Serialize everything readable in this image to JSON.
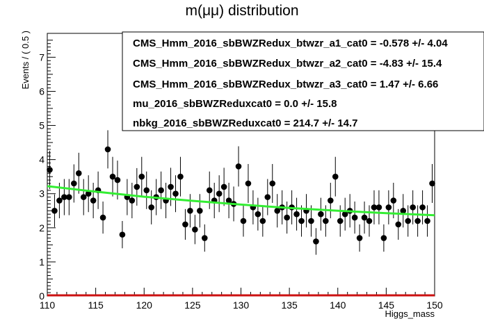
{
  "chart_data": {
    "type": "scatter",
    "title": "m(μμ) distribution",
    "xlabel": "Higgs_mass",
    "ylabel": "Events / ( 0.5 )",
    "xlim": [
      110,
      150
    ],
    "ylim": [
      0,
      7.7
    ],
    "x_ticks": [
      "110",
      "115",
      "120",
      "125",
      "130",
      "135",
      "140",
      "145",
      "150"
    ],
    "y_ticks": [
      "0",
      "1",
      "2",
      "3",
      "4",
      "5",
      "6",
      "7"
    ],
    "grid": false,
    "legend": "top-right",
    "series": [
      {
        "kind": "points_with_errors",
        "color": "#000000",
        "x": [
          110.25,
          110.75,
          111.25,
          111.75,
          112.25,
          112.75,
          113.25,
          113.75,
          114.25,
          114.75,
          115.25,
          115.75,
          116.25,
          116.75,
          117.25,
          117.75,
          118.25,
          118.75,
          119.25,
          119.75,
          120.25,
          120.75,
          121.25,
          121.75,
          122.25,
          122.75,
          123.25,
          123.75,
          124.25,
          124.75,
          125.25,
          125.75,
          126.25,
          126.75,
          127.25,
          127.75,
          128.25,
          128.75,
          129.25,
          129.75,
          130.25,
          130.75,
          131.25,
          131.75,
          132.25,
          132.75,
          133.25,
          133.75,
          134.25,
          134.75,
          135.25,
          135.75,
          136.25,
          136.75,
          137.25,
          137.75,
          138.25,
          138.75,
          139.25,
          139.75,
          140.25,
          140.75,
          141.25,
          141.75,
          142.25,
          142.75,
          143.25,
          143.75,
          144.25,
          144.75,
          145.25,
          145.75,
          146.25,
          146.75,
          147.25,
          147.75,
          148.25,
          148.75,
          149.25,
          149.75
        ],
        "y": [
          3.7,
          2.5,
          2.8,
          2.9,
          2.9,
          3.3,
          3.6,
          2.9,
          3.0,
          2.8,
          3.1,
          2.3,
          4.3,
          3.5,
          3.4,
          1.8,
          2.9,
          2.8,
          3.2,
          3.5,
          3.1,
          2.6,
          2.9,
          3.1,
          2.8,
          3.2,
          3.0,
          3.5,
          2.1,
          2.5,
          1.95,
          2.5,
          1.7,
          3.1,
          2.8,
          3.0,
          3.2,
          2.8,
          2.7,
          3.8,
          2.2,
          3.3,
          2.6,
          2.4,
          2.2,
          2.9,
          3.3,
          2.5,
          2.6,
          2.3,
          2.6,
          2.4,
          2.2,
          2.5,
          2.2,
          1.6,
          2.4,
          2.2,
          2.8,
          3.5,
          2.2,
          2.4,
          2.5,
          2.3,
          1.7,
          2.3,
          2.2,
          2.6,
          2.6,
          1.7,
          2.6,
          2.8,
          2.1,
          2.5,
          2.2,
          2.6,
          2.2,
          2.6,
          2.2,
          3.3
        ],
        "yerr": [
          0.56,
          0.48,
          0.52,
          0.53,
          0.53,
          0.56,
          0.6,
          0.53,
          0.54,
          0.52,
          0.55,
          0.47,
          0.56,
          0.58,
          0.57,
          0.4,
          0.53,
          0.52,
          0.55,
          0.58,
          0.55,
          0.5,
          0.53,
          0.55,
          0.52,
          0.56,
          0.54,
          0.58,
          0.45,
          0.49,
          0.43,
          0.49,
          0.4,
          0.55,
          0.52,
          0.54,
          0.56,
          0.52,
          0.51,
          0.59,
          0.46,
          0.57,
          0.5,
          0.48,
          0.46,
          0.53,
          0.57,
          0.49,
          0.5,
          0.47,
          0.5,
          0.48,
          0.46,
          0.49,
          0.46,
          0.39,
          0.48,
          0.46,
          0.52,
          0.58,
          0.46,
          0.48,
          0.49,
          0.47,
          0.4,
          0.47,
          0.46,
          0.5,
          0.5,
          0.4,
          0.5,
          0.52,
          0.45,
          0.49,
          0.46,
          0.5,
          0.46,
          0.5,
          0.46,
          0.57
        ]
      },
      {
        "kind": "fit_curve",
        "color": "#33ee33",
        "x": [
          110,
          115,
          120,
          125,
          130,
          135,
          140,
          145,
          150
        ],
        "y": [
          3.22,
          3.06,
          2.91,
          2.79,
          2.68,
          2.58,
          2.5,
          2.43,
          2.37
        ]
      },
      {
        "kind": "baseline",
        "color": "#cc1111",
        "x": [
          110,
          150
        ],
        "y": [
          0,
          0
        ]
      }
    ],
    "parameters": [
      "CMS_Hmm_2016_sbBWZRedux_btwzr_a1_cat0 = -0.578 +/- 4.04",
      "CMS_Hmm_2016_sbBWZRedux_btwzr_a2_cat0 = -4.83 +/- 15.4",
      "CMS_Hmm_2016_sbBWZRedux_btwzr_a3_cat0 =  1.47 +/- 6.66",
      "mu_2016_sbBWZReduxcat0 =  0.0 +/- 15.8",
      "nbkg_2016_sbBWZReduxcat0 =  214.7 +/- 14.7"
    ]
  }
}
